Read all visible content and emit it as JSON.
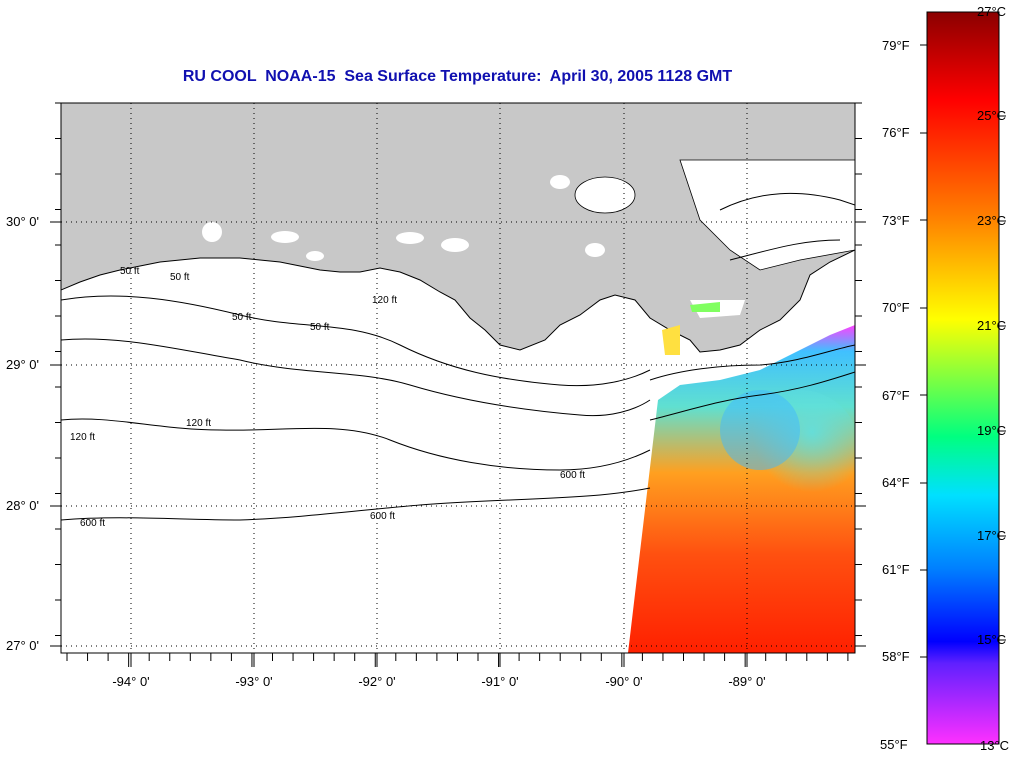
{
  "map": {
    "title": "RU COOL  NOAA-15  Sea Surface Temperature:  April 30, 2005 1128 GMT",
    "latitude_labels": [
      "30° 0'",
      "29° 0'",
      "28° 0'",
      "27° 0'"
    ],
    "longitude_labels": [
      "-94° 0'",
      "-93° 0'",
      "-92° 0'",
      "-91° 0'",
      "-90° 0'",
      "-89° 0'"
    ],
    "contour_labels": [
      "50 ft",
      "50 ft",
      "50 ft",
      "50 ft",
      "120 ft",
      "120 ft",
      "120 ft",
      "600 ft",
      "600 ft",
      "600 ft"
    ],
    "colors": {
      "land": "#c8c8c8",
      "water": "#ffffff",
      "title": "#1010b0"
    }
  },
  "colorbar": {
    "fahrenheit_labels": [
      "79°F",
      "76°F",
      "73°F",
      "70°F",
      "67°F",
      "64°F",
      "61°F",
      "58°F",
      "55°F"
    ],
    "celsius_labels": [
      "27°C",
      "25°C",
      "23°C",
      "21°C",
      "19°C",
      "17°C",
      "15°C",
      "13°C"
    ],
    "colors_top_to_bottom": [
      "#8b0000",
      "#ff0000",
      "#ff8000",
      "#ffff00",
      "#00ff80",
      "#00e0ff",
      "#0060ff",
      "#0000ff",
      "#8040ff",
      "#ff40ff"
    ]
  }
}
